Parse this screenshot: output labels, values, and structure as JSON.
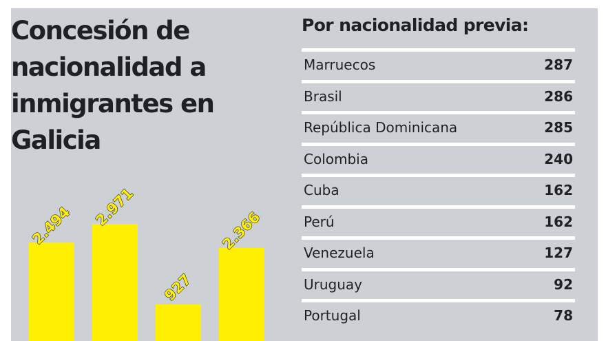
{
  "title": "Concesión de nacionalidad a inmigrantes en Galicia",
  "table": {
    "title": "Por nacionalidad previa:",
    "rows": [
      {
        "country": "Marruecos",
        "value": "287"
      },
      {
        "country": "Brasil",
        "value": "286"
      },
      {
        "country": "República Dominicana",
        "value": "285"
      },
      {
        "country": "Colombia",
        "value": "240"
      },
      {
        "country": "Cuba",
        "value": "162"
      },
      {
        "country": "Perú",
        "value": "162"
      },
      {
        "country": "Venezuela",
        "value": "127"
      },
      {
        "country": "Uruguay",
        "value": "92"
      },
      {
        "country": "Portugal",
        "value": "78"
      }
    ]
  },
  "colors": {
    "background": "#cdd1d6",
    "bar": "#ffef00",
    "text": "#1e2024",
    "row_divider": "#ffffff"
  },
  "chart_data": {
    "type": "bar",
    "categories": [
      "",
      "",
      "",
      ""
    ],
    "values": [
      2494,
      2971,
      927,
      2366
    ],
    "value_labels": [
      "2.494",
      "2.971",
      "927",
      "2.366"
    ],
    "title": "",
    "xlabel": "",
    "ylabel": "",
    "grid": false,
    "legend": "none"
  }
}
